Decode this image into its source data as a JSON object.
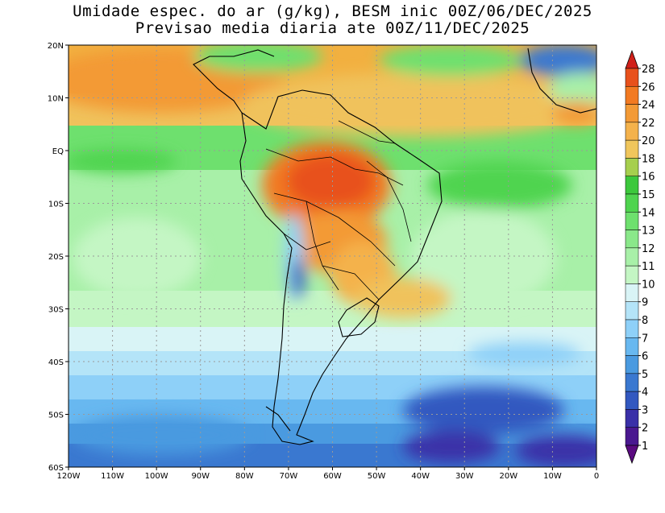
{
  "title_line1": "Umidade espec. do ar (g/kg), BESM inic 00Z/06/DEC/2025",
  "title_line2": "Previsao media diaria ate 00Z/11/DEC/2025",
  "lon_labels": [
    "120W",
    "110W",
    "100W",
    "90W",
    "80W",
    "70W",
    "60W",
    "50W",
    "40W",
    "30W",
    "20W",
    "10W",
    "0"
  ],
  "lat_labels": [
    "20N",
    "10N",
    "EQ",
    "10S",
    "20S",
    "30S",
    "40S",
    "50S",
    "60S"
  ],
  "lon_values": [
    -120,
    -110,
    -100,
    -90,
    -80,
    -70,
    -60,
    -50,
    -40,
    -30,
    -20,
    -10,
    0
  ],
  "lat_values": [
    20,
    10,
    0,
    -10,
    -20,
    -30,
    -40,
    -50,
    -60
  ],
  "colorbar": {
    "levels": [
      "28",
      "26",
      "24",
      "22",
      "20",
      "18",
      "16",
      "15",
      "14",
      "13",
      "12",
      "11",
      "10",
      "9",
      "8",
      "7",
      "6",
      "5",
      "4",
      "3",
      "2",
      "1"
    ],
    "colors": [
      "#d62a17",
      "#e8511c",
      "#f27a22",
      "#f39a36",
      "#f4b24c",
      "#f0c65c",
      "#a6cf4e",
      "#3cc83c",
      "#4fd44f",
      "#6ee06e",
      "#8ae88a",
      "#a8f0a8",
      "#c4f6c4",
      "#d9f4f6",
      "#b4e4f8",
      "#8ed0f8",
      "#68b8f0",
      "#4a9ae0",
      "#3a78d0",
      "#3258c0",
      "#3a30a8",
      "#4a1890",
      "#5a0a80"
    ],
    "arrow_top_color": "#d0201a",
    "arrow_bottom_color": "#5a0a80"
  }
}
